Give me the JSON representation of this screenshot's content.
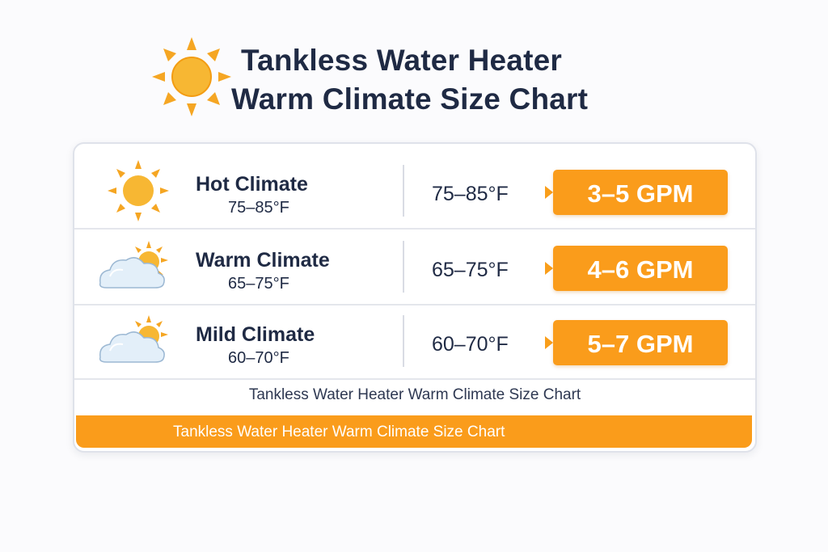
{
  "title": {
    "line1": "Tankless Water Heater",
    "line2": "Warm Climate Size Chart",
    "icon": "sun-icon"
  },
  "colors": {
    "accent": "#fa9c1b",
    "sun": "#f5a623",
    "text": "#1f2a44",
    "cloud": "#dcebf7"
  },
  "chart_data": {
    "type": "table",
    "title": "Tankless Water Heater Warm Climate Size Chart",
    "rows": [
      {
        "climate": "Hot Climate",
        "range": "75–85°F",
        "range_repeat": "75–85°F",
        "gpm": "3–5 GPM",
        "icon": "sun-icon"
      },
      {
        "climate": "Warm Climate",
        "range": "65–75°F",
        "range_repeat": "65–75°F",
        "gpm": "4–6 GPM",
        "icon": "sun-behind-cloud-icon"
      },
      {
        "climate": "Mild Climate",
        "range": "60–70°F",
        "range_repeat": "60–70°F",
        "gpm": "5–7 GPM",
        "icon": "sun-behind-cloud-icon"
      }
    ],
    "caption": "Tankless Water Heater Warm Climate Size Chart",
    "footer": "Tankless Water Heater Warm Climate Size Chart"
  }
}
